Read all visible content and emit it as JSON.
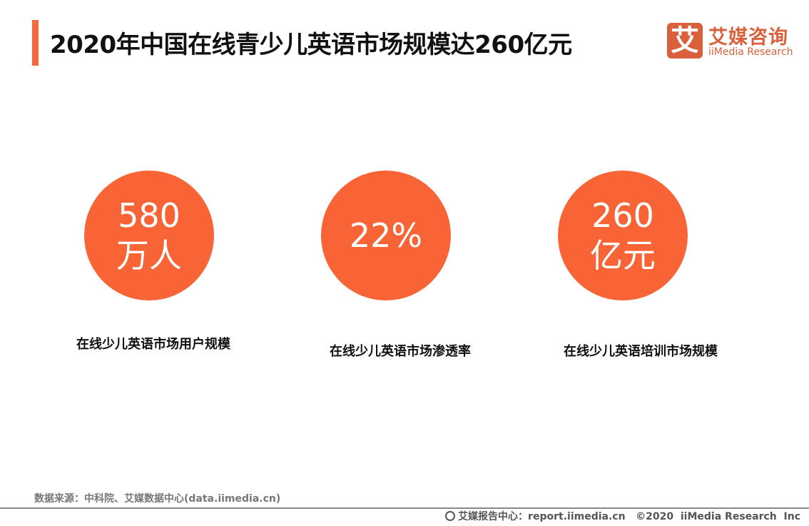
{
  "header": {
    "title": "2020年中国在线青少儿英语市场规模达260亿元",
    "accent_color": "#f46a3a"
  },
  "logo": {
    "mark": "艾",
    "name_cn": "艾媒咨询",
    "name_en": "iiMedia Research",
    "color": "#d9603b"
  },
  "stats": [
    {
      "line1": "580",
      "line2": "万人",
      "label": "在线少儿英语市场用户规模"
    },
    {
      "line1": "22%",
      "line2": "",
      "label": "在线少儿英语市场渗透率"
    },
    {
      "line1": "260",
      "line2": "亿元",
      "label": "在线少儿英语培训市场规模"
    }
  ],
  "circle_color": "#f86436",
  "source": "数据来源：中科院、艾媒数据中心(data.iimedia.cn)",
  "footer": {
    "icon": "globe-icon",
    "text": "艾媒报告中心：report.iimedia.cn   ©2020  iiMedia Research  Inc"
  }
}
